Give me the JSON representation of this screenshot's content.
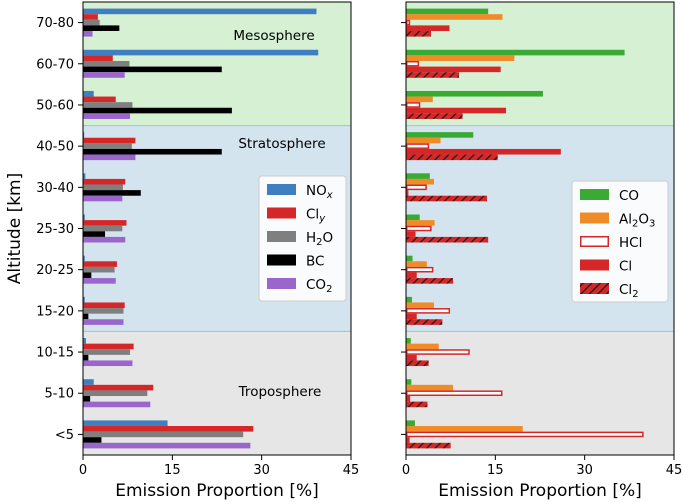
{
  "chart_data": [
    {
      "type": "bar",
      "orientation": "horizontal",
      "panel": "left",
      "ylabel": "Altitude [km]",
      "xlabel": "Emission Proportion [%]",
      "xlim": [
        0,
        45
      ],
      "xticks": [
        "0",
        "15",
        "30",
        "45"
      ],
      "categories": [
        "<5",
        "5-10",
        "10-15",
        "15-20",
        "20-25",
        "25-30",
        "30-40",
        "40-50",
        "50-60",
        "60-70",
        "70-80"
      ],
      "regions": [
        {
          "name": "Troposphere",
          "from": "<5",
          "to": "10-15",
          "color": "#e6e6e6"
        },
        {
          "name": "Stratosphere",
          "from": "15-20",
          "to": "40-50",
          "color": "#d4e4ef"
        },
        {
          "name": "Mesosphere",
          "from": "50-60",
          "to": "70-80",
          "color": "#d6f0d4"
        }
      ],
      "legend_position": "right",
      "series": [
        {
          "name": "NOₓ",
          "label_main": "NO",
          "label_sub": "x",
          "sub_style": "italic",
          "color": "#3f7fbf",
          "values": [
            14.2,
            1.8,
            0.5,
            0.3,
            0.3,
            0.3,
            0.4,
            0.2,
            1.8,
            39.5,
            39.2
          ]
        },
        {
          "name": "Clᵧ",
          "label_main": "Cl",
          "label_sub": "y",
          "sub_style": "italic",
          "color": "#d62728",
          "values": [
            28.6,
            11.8,
            8.5,
            7.0,
            5.7,
            7.3,
            7.1,
            8.8,
            5.5,
            5.0,
            2.5
          ]
        },
        {
          "name": "H₂O",
          "label_main": "H",
          "label_sub": "2",
          "label_tail": "O",
          "color": "#7f7f7f",
          "values": [
            26.9,
            10.8,
            7.9,
            6.8,
            5.3,
            6.6,
            6.7,
            8.2,
            8.3,
            7.8,
            2.8
          ]
        },
        {
          "name": "BC",
          "label_main": "BC",
          "color": "#000000",
          "values": [
            3.1,
            1.2,
            0.9,
            0.9,
            1.4,
            3.7,
            9.7,
            23.3,
            25.0,
            23.3,
            6.1
          ]
        },
        {
          "name": "CO₂",
          "label_main": "CO",
          "label_sub": "2",
          "color": "#9a66cc",
          "values": [
            28.1,
            11.3,
            8.3,
            6.8,
            5.5,
            7.1,
            6.6,
            8.8,
            7.9,
            7.0,
            1.6
          ]
        }
      ]
    },
    {
      "type": "bar",
      "orientation": "horizontal",
      "panel": "right",
      "xlabel": "Emission Proportion [%]",
      "xlim": [
        0,
        45
      ],
      "xticks": [
        "0",
        "15",
        "30",
        "45"
      ],
      "categories": [
        "<5",
        "5-10",
        "10-15",
        "15-20",
        "20-25",
        "25-30",
        "30-40",
        "40-50",
        "50-60",
        "60-70",
        "70-80"
      ],
      "legend_position": "right",
      "series": [
        {
          "name": "CO",
          "label_main": "CO",
          "style": "solid",
          "color": "#3aaa35",
          "values": [
            1.5,
            0.9,
            0.8,
            1.0,
            1.1,
            2.3,
            4.0,
            11.3,
            23.0,
            36.7,
            13.8
          ]
        },
        {
          "name": "Al₂O₃",
          "label_main": "Al",
          "label_sub": "2",
          "label_tail": "O",
          "label_sub2": "3",
          "style": "solid",
          "color": "#f08c28",
          "values": [
            19.6,
            7.9,
            5.5,
            4.7,
            3.5,
            4.8,
            4.7,
            5.8,
            4.5,
            18.2,
            16.2
          ]
        },
        {
          "name": "HCl",
          "label_main": "HCl",
          "style": "outline",
          "color": "#d62728",
          "values": [
            39.9,
            16.2,
            10.7,
            7.4,
            4.6,
            4.3,
            3.5,
            3.9,
            2.4,
            2.2,
            0.7
          ]
        },
        {
          "name": "Cl",
          "label_main": "Cl",
          "style": "solid",
          "color": "#d62728",
          "values": [
            0.6,
            0.7,
            1.8,
            1.8,
            1.8,
            1.6,
            0.4,
            26.0,
            16.8,
            15.9,
            7.3
          ]
        },
        {
          "name": "Cl₂",
          "label_main": "Cl",
          "label_sub": "2",
          "style": "hatched",
          "color": "#d62728",
          "values": [
            7.5,
            3.6,
            3.8,
            6.1,
            7.9,
            13.8,
            13.6,
            15.4,
            9.5,
            8.9,
            4.2
          ]
        }
      ]
    }
  ]
}
